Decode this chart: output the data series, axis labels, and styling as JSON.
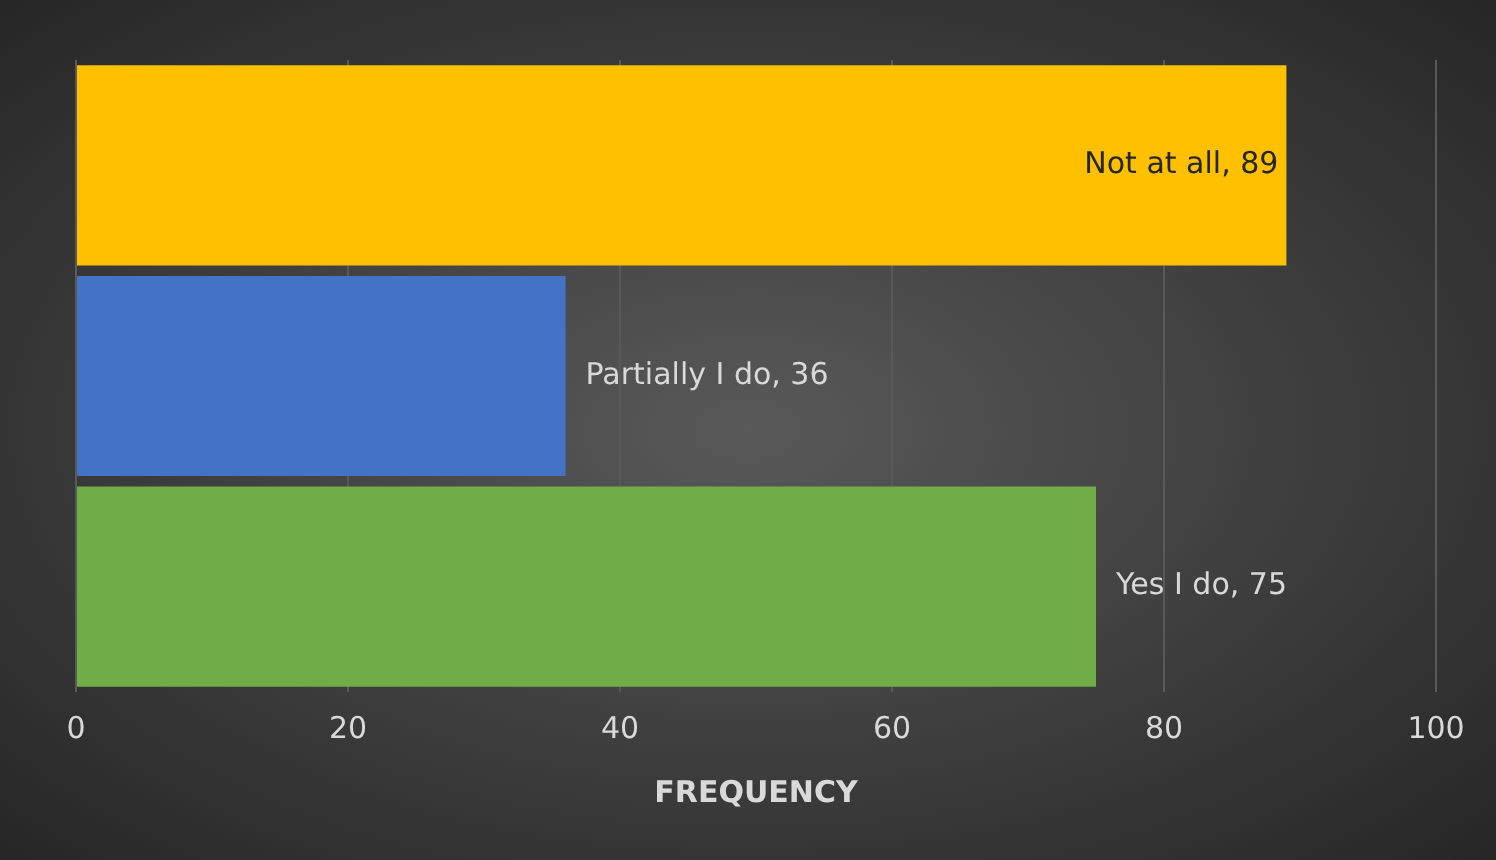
{
  "chart_data": {
    "type": "bar",
    "orientation": "horizontal",
    "xlabel": "FREQUENCY",
    "categories": [
      null,
      null,
      null
    ],
    "values": [
      89,
      36,
      75
    ],
    "colors": [
      "#ffc000",
      "#4472c4",
      "#70ad47"
    ],
    "value_labels": [
      "Not at all, 89",
      "Partially I do, 36",
      "Yes I do, 75"
    ],
    "xlim": [
      0,
      100
    ],
    "xticks": [
      0,
      20,
      40,
      60,
      80,
      100
    ],
    "grid": "x",
    "tick_labels": "x",
    "legend": false
  }
}
